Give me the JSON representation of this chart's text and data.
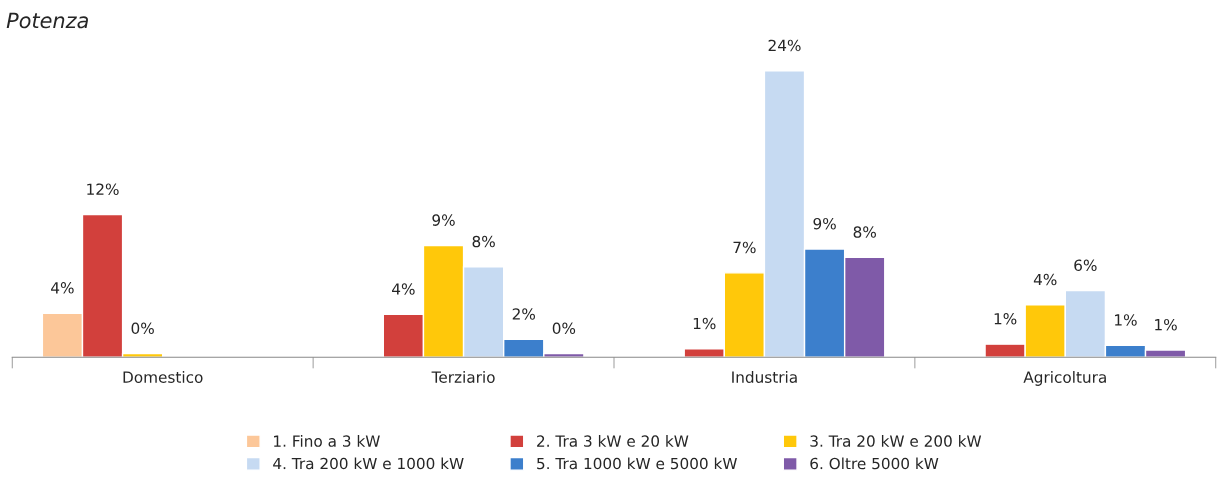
{
  "chart_data": {
    "type": "bar",
    "title": "Potenza",
    "categories": [
      "Domestico",
      "Terziario",
      "Industria",
      "Agricoltura"
    ],
    "series": [
      {
        "name": "1. Fino a 3 kW",
        "color": "#fcc799",
        "values": [
          3.7,
          null,
          null,
          null
        ],
        "value_labels": [
          "4%",
          null,
          null,
          null
        ]
      },
      {
        "name": "2. Tra 3 kW e 20 kW",
        "color": "#d2403c",
        "values": [
          12.0,
          3.6,
          0.7,
          1.1
        ],
        "value_labels": [
          "12%",
          "4%",
          "1%",
          "1%"
        ]
      },
      {
        "name": "3. Tra 20 kW e 200 kW",
        "color": "#ffc80a",
        "values": [
          0.3,
          9.4,
          7.1,
          4.4
        ],
        "value_labels": [
          "0%",
          "9%",
          "7%",
          "4%"
        ]
      },
      {
        "name": "4. Tra 200 kW e 1000 kW",
        "color": "#c6daf2",
        "values": [
          null,
          7.6,
          24.1,
          5.6
        ],
        "value_labels": [
          null,
          "8%",
          "24%",
          "6%"
        ]
      },
      {
        "name": "5. Tra 1000 kW e 5000 kW",
        "color": "#3c7fcc",
        "values": [
          null,
          1.5,
          9.1,
          1.0
        ],
        "value_labels": [
          null,
          "2%",
          "9%",
          "1%"
        ]
      },
      {
        "name": "6. Oltre 5000 kW",
        "color": "#7f5aa8",
        "values": [
          null,
          0.3,
          8.4,
          0.6
        ],
        "value_labels": [
          null,
          "0%",
          "8%",
          "1%"
        ]
      }
    ],
    "legend": "bottom"
  }
}
